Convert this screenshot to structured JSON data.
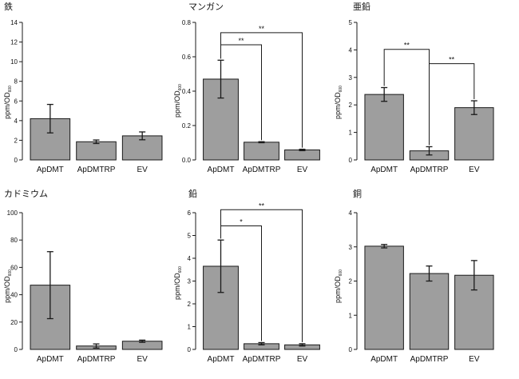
{
  "colors": {
    "bar_fill": "#9e9e9e",
    "bar_stroke": "#1a1a1a",
    "axis": "#1a1a1a",
    "bracket": "#1a1a1a"
  },
  "chart_data": [
    {
      "type": "bar",
      "title": "鉄",
      "ylabel_main": "ppm/OD",
      "ylabel_sub": "600",
      "categories": [
        "ApDMT",
        "ApDMTRP",
        "EV"
      ],
      "values": [
        4.2,
        1.85,
        2.45
      ],
      "errors": [
        1.45,
        0.18,
        0.4
      ],
      "ylim": [
        0,
        14
      ],
      "yticks": [
        0,
        2,
        4,
        6,
        8,
        10,
        12,
        14
      ],
      "ytick_labels": [
        "0",
        "2",
        "4",
        "6",
        "8",
        "10",
        "12",
        "14"
      ],
      "significance": []
    },
    {
      "type": "bar",
      "title": "マンガン",
      "ylabel_main": "ppm/OD",
      "ylabel_sub": "600",
      "categories": [
        "ApDMT",
        "ApDMTRP",
        "EV"
      ],
      "values": [
        0.47,
        0.103,
        0.058
      ],
      "errors": [
        0.11,
        0.003,
        0.004
      ],
      "ylim": [
        0,
        0.8
      ],
      "yticks": [
        0,
        0.2,
        0.4,
        0.6,
        0.8
      ],
      "ytick_labels": [
        "0.0",
        "0.2",
        "0.4",
        "0.6",
        "0.8"
      ],
      "significance": [
        {
          "from": 0,
          "to": 1,
          "label": "**",
          "height": 0.67
        },
        {
          "from": 0,
          "to": 2,
          "label": "**",
          "height": 0.74
        }
      ]
    },
    {
      "type": "bar",
      "title": "亜鉛",
      "ylabel_main": "ppm/OD",
      "ylabel_sub": "600",
      "categories": [
        "ApDMT",
        "ApDMTRP",
        "EV"
      ],
      "values": [
        2.38,
        0.33,
        1.9
      ],
      "errors": [
        0.25,
        0.15,
        0.25
      ],
      "ylim": [
        0,
        5
      ],
      "yticks": [
        0,
        1,
        2,
        3,
        4,
        5
      ],
      "ytick_labels": [
        "0",
        "1",
        "2",
        "3",
        "4",
        "5"
      ],
      "significance": [
        {
          "from": 0,
          "to": 1,
          "label": "**",
          "height": 4.02
        },
        {
          "from": 1,
          "to": 2,
          "label": "**",
          "height": 3.5
        }
      ]
    },
    {
      "type": "bar",
      "title": "カドミウム",
      "ylabel_main": "ppm/OD",
      "ylabel_sub": "600",
      "categories": [
        "ApDMT",
        "ApDMTRP",
        "EV"
      ],
      "values": [
        47,
        2.5,
        6
      ],
      "errors": [
        24.5,
        1.5,
        0.8
      ],
      "ylim": [
        0,
        100
      ],
      "yticks": [
        0,
        20,
        40,
        60,
        80,
        100
      ],
      "ytick_labels": [
        "0",
        "20",
        "40",
        "60",
        "80",
        "100"
      ],
      "significance": []
    },
    {
      "type": "bar",
      "title": "鉛",
      "ylabel_main": "ppm/OD",
      "ylabel_sub": "600",
      "categories": [
        "ApDMT",
        "ApDMTRP",
        "EV"
      ],
      "values": [
        3.65,
        0.25,
        0.2
      ],
      "errors": [
        1.15,
        0.05,
        0.05
      ],
      "ylim": [
        0,
        6
      ],
      "yticks": [
        0,
        1,
        2,
        3,
        4,
        5,
        6
      ],
      "ytick_labels": [
        "0",
        "1",
        "2",
        "3",
        "4",
        "5",
        "6"
      ],
      "significance": [
        {
          "from": 0,
          "to": 1,
          "label": "*",
          "height": 5.42
        },
        {
          "from": 0,
          "to": 2,
          "label": "**",
          "height": 6.13
        }
      ]
    },
    {
      "type": "bar",
      "title": "銅",
      "ylabel_main": "ppm/OD",
      "ylabel_sub": "600",
      "categories": [
        "ApDMT",
        "ApDMTRP",
        "EV"
      ],
      "values": [
        3.02,
        2.22,
        2.17
      ],
      "errors": [
        0.05,
        0.22,
        0.43
      ],
      "ylim": [
        0,
        4
      ],
      "yticks": [
        0,
        1,
        2,
        3,
        4
      ],
      "ytick_labels": [
        "0",
        "1",
        "2",
        "3",
        "4"
      ],
      "significance": []
    }
  ]
}
